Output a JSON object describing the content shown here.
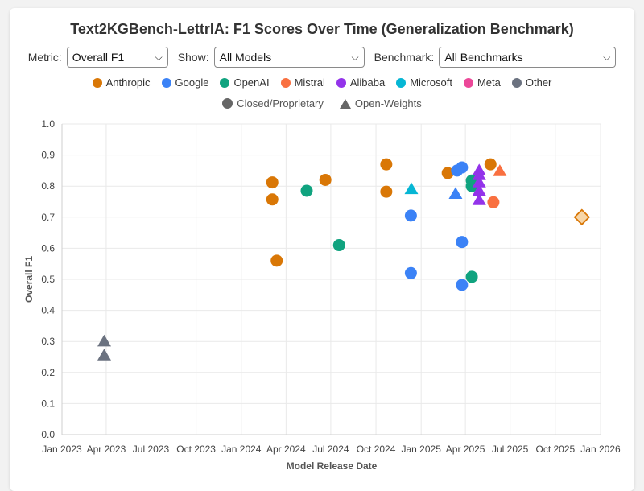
{
  "title": "Text2KGBench-LettrIA: F1 Scores Over Time (Generalization Benchmark)",
  "controls": {
    "metric_label": "Metric:",
    "metric_value": "Overall F1",
    "show_label": "Show:",
    "show_value": "All Models",
    "benchmark_label": "Benchmark:",
    "benchmark_value": "All Benchmarks"
  },
  "legend": {
    "providers": [
      {
        "name": "Anthropic",
        "color": "#d97706"
      },
      {
        "name": "Google",
        "color": "#3b82f6"
      },
      {
        "name": "OpenAI",
        "color": "#10a37f"
      },
      {
        "name": "Mistral",
        "color": "#f97040"
      },
      {
        "name": "Alibaba",
        "color": "#9333ea"
      },
      {
        "name": "Microsoft",
        "color": "#06b6d4"
      },
      {
        "name": "Meta",
        "color": "#ec4899"
      },
      {
        "name": "Other",
        "color": "#6b7280"
      }
    ],
    "shapes": [
      {
        "name": "Closed/Proprietary",
        "icon": "circle-icon"
      },
      {
        "name": "Open-Weights",
        "icon": "triangle-icon"
      }
    ]
  },
  "chart_data": {
    "type": "scatter",
    "title": "Text2KGBench-LettrIA: F1 Scores Over Time (Generalization Benchmark)",
    "xlabel": "Model Release Date",
    "ylabel": "Overall F1",
    "xlim": [
      "2023-01-01",
      "2026-01-01"
    ],
    "ylim": [
      0,
      1.0
    ],
    "x_ticks": [
      "Jan 2023",
      "Apr 2023",
      "Jul 2023",
      "Oct 2023",
      "Jan 2024",
      "Apr 2024",
      "Jul 2024",
      "Oct 2024",
      "Jan 2025",
      "Apr 2025",
      "Jul 2025",
      "Oct 2025",
      "Jan 2026"
    ],
    "y_ticks": [
      "0.0",
      "0.1",
      "0.2",
      "0.3",
      "0.4",
      "0.5",
      "0.6",
      "0.7",
      "0.8",
      "0.9",
      "1.0"
    ],
    "grid": true,
    "points": [
      {
        "provider": "Other",
        "type": "open",
        "date": "2023-03-28",
        "y": 0.3
      },
      {
        "provider": "Other",
        "type": "open",
        "date": "2023-03-28",
        "y": 0.255
      },
      {
        "provider": "Anthropic",
        "type": "closed",
        "date": "2024-03-04",
        "y": 0.812
      },
      {
        "provider": "Anthropic",
        "type": "closed",
        "date": "2024-03-04",
        "y": 0.757
      },
      {
        "provider": "Anthropic",
        "type": "closed",
        "date": "2024-03-13",
        "y": 0.56
      },
      {
        "provider": "OpenAI",
        "type": "closed",
        "date": "2024-05-13",
        "y": 0.785
      },
      {
        "provider": "Anthropic",
        "type": "closed",
        "date": "2024-06-20",
        "y": 0.82
      },
      {
        "provider": "OpenAI",
        "type": "closed",
        "date": "2024-07-18",
        "y": 0.61
      },
      {
        "provider": "Anthropic",
        "type": "closed",
        "date": "2024-10-22",
        "y": 0.87
      },
      {
        "provider": "Anthropic",
        "type": "closed",
        "date": "2024-10-22",
        "y": 0.782
      },
      {
        "provider": "Microsoft",
        "type": "open",
        "date": "2024-12-12",
        "y": 0.79
      },
      {
        "provider": "Google",
        "type": "closed",
        "date": "2024-12-11",
        "y": 0.705
      },
      {
        "provider": "Google",
        "type": "closed",
        "date": "2024-12-11",
        "y": 0.52
      },
      {
        "provider": "Anthropic",
        "type": "closed",
        "date": "2025-02-24",
        "y": 0.842
      },
      {
        "provider": "Google",
        "type": "open",
        "date": "2025-03-12",
        "y": 0.775
      },
      {
        "provider": "Google",
        "type": "closed",
        "date": "2025-03-15",
        "y": 0.85
      },
      {
        "provider": "Google",
        "type": "closed",
        "date": "2025-03-25",
        "y": 0.86
      },
      {
        "provider": "Google",
        "type": "closed",
        "date": "2025-03-25",
        "y": 0.62
      },
      {
        "provider": "Google",
        "type": "closed",
        "date": "2025-03-25",
        "y": 0.482
      },
      {
        "provider": "OpenAI",
        "type": "closed",
        "date": "2025-04-14",
        "y": 0.818
      },
      {
        "provider": "OpenAI",
        "type": "closed",
        "date": "2025-04-14",
        "y": 0.8
      },
      {
        "provider": "OpenAI",
        "type": "closed",
        "date": "2025-04-14",
        "y": 0.508
      },
      {
        "provider": "Alibaba",
        "type": "open",
        "date": "2025-04-29",
        "y": 0.85
      },
      {
        "provider": "Alibaba",
        "type": "open",
        "date": "2025-04-29",
        "y": 0.835
      },
      {
        "provider": "Alibaba",
        "type": "open",
        "date": "2025-04-29",
        "y": 0.812
      },
      {
        "provider": "Alibaba",
        "type": "open",
        "date": "2025-04-29",
        "y": 0.785
      },
      {
        "provider": "Alibaba",
        "type": "open",
        "date": "2025-04-29",
        "y": 0.755
      },
      {
        "provider": "Anthropic",
        "type": "closed",
        "date": "2025-05-22",
        "y": 0.87
      },
      {
        "provider": "Mistral",
        "type": "closed",
        "date": "2025-05-28",
        "y": 0.748
      },
      {
        "provider": "Mistral",
        "type": "open",
        "date": "2025-06-10",
        "y": 0.848
      },
      {
        "provider": "Anthropic",
        "type": "highlight",
        "date": "2025-11-24",
        "y": 0.7
      }
    ]
  }
}
